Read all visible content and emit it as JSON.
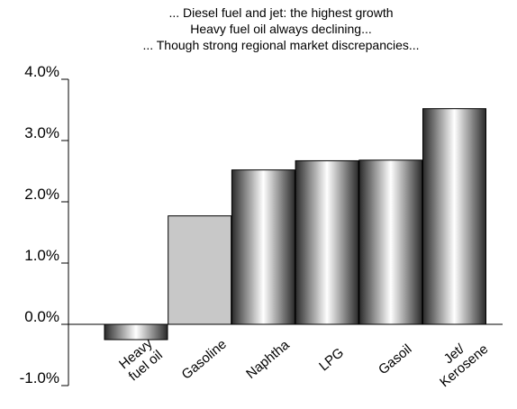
{
  "chart_data": {
    "type": "bar",
    "title_lines": [
      "... Diesel fuel and jet: the highest growth",
      "Heavy fuel oil always declining...",
      "... Though strong regional market discrepancies..."
    ],
    "xlabel": "",
    "ylabel": "",
    "categories": [
      [
        "Heavy",
        "fuel oil"
      ],
      [
        "Gasoline"
      ],
      [
        "Naphtha"
      ],
      [
        "LPG"
      ],
      [
        "Gasoil"
      ],
      [
        "Jet/",
        "Kerosene"
      ]
    ],
    "values": [
      -0.25,
      1.77,
      2.52,
      2.67,
      2.68,
      3.52
    ],
    "ylim": [
      -1.0,
      4.0
    ],
    "yticks": [
      "4.0%",
      "3.0%",
      "2.0%",
      "1.0%",
      "0.0%",
      "-1.0%"
    ],
    "ytick_values": [
      4.0,
      3.0,
      2.0,
      1.0,
      0.0,
      -1.0
    ],
    "grid": false,
    "colors": {
      "bar_dark": "#2a2a2a",
      "bar_light": "#ffffff",
      "gasoline_fill": "#c8c8c8",
      "axis": "#000000"
    }
  }
}
